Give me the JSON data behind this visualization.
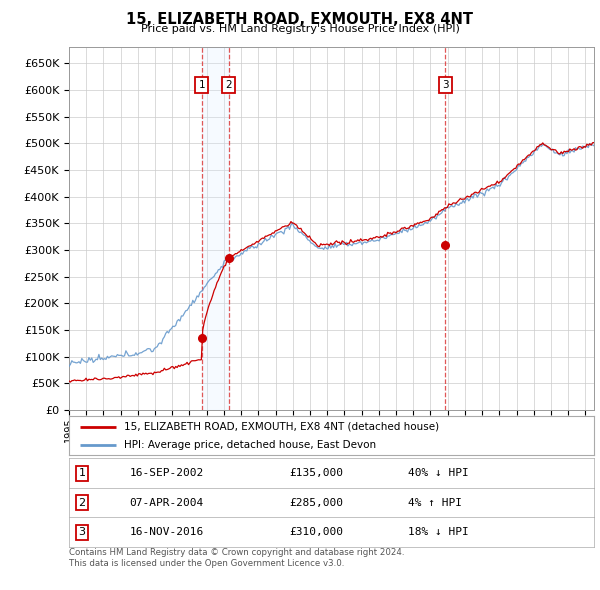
{
  "title": "15, ELIZABETH ROAD, EXMOUTH, EX8 4NT",
  "subtitle": "Price paid vs. HM Land Registry's House Price Index (HPI)",
  "ylim": [
    0,
    680000
  ],
  "yticks": [
    0,
    50000,
    100000,
    150000,
    200000,
    250000,
    300000,
    350000,
    400000,
    450000,
    500000,
    550000,
    600000,
    650000
  ],
  "legend_line1": "15, ELIZABETH ROAD, EXMOUTH, EX8 4NT (detached house)",
  "legend_line2": "HPI: Average price, detached house, East Devon",
  "line_color_red": "#cc0000",
  "line_color_blue": "#6699cc",
  "shade_color": "#ddeeff",
  "dashed_color": "#dd4444",
  "transactions": [
    {
      "num": 1,
      "date": "16-SEP-2002",
      "price": 135000,
      "price_str": "£135,000",
      "pct": "40%",
      "dir": "↓",
      "year": 2002.71
    },
    {
      "num": 2,
      "date": "07-APR-2004",
      "price": 285000,
      "price_str": "£285,000",
      "pct": "4%",
      "dir": "↑",
      "year": 2004.27
    },
    {
      "num": 3,
      "date": "16-NOV-2016",
      "price": 310000,
      "price_str": "£310,000",
      "pct": "18%",
      "dir": "↓",
      "year": 2016.87
    }
  ],
  "footer": "Contains HM Land Registry data © Crown copyright and database right 2024.\nThis data is licensed under the Open Government Licence v3.0.",
  "background_color": "#ffffff",
  "grid_color": "#cccccc",
  "xlim_start": 1995,
  "xlim_end": 2025.5
}
